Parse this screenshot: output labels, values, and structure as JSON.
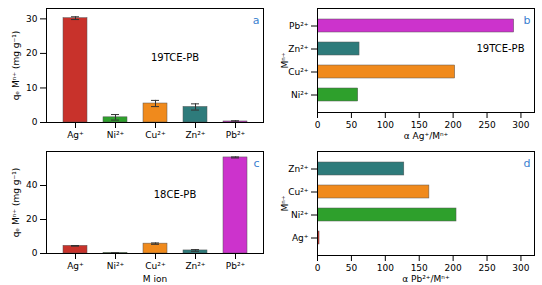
{
  "chart_data": [
    {
      "type": "bar",
      "categories": [
        "Ag⁺",
        "Ni²⁺",
        "Cu²⁺",
        "Zn²⁺",
        "Pb²⁺"
      ],
      "values": [
        30.2,
        1.5,
        5.5,
        4.5,
        0.3
      ],
      "errors": [
        0.4,
        0.8,
        0.9,
        0.9,
        0.2
      ],
      "colors": [
        "#c8322b",
        "#2ea02c",
        "#f08a1c",
        "#2e7b7b",
        "#cc33cc"
      ],
      "ylabel": "qₑ Mⁿ⁺ (mg g⁻¹)",
      "ylim": [
        0,
        33
      ],
      "yticks": [
        0,
        10,
        20,
        30
      ],
      "annotations": [
        "19TCE-PB",
        "a"
      ]
    },
    {
      "type": "bar",
      "orientation": "horizontal",
      "categories": [
        "Pb²⁺",
        "Zn²⁺",
        "Cu²⁺",
        "Ni²⁺"
      ],
      "values": [
        290,
        62,
        203,
        60
      ],
      "colors": [
        "#cc33cc",
        "#2e7b7b",
        "#f08a1c",
        "#2ea02c"
      ],
      "ylabel": "Mⁿ⁺",
      "xlabel": "α Ag⁺/Mⁿ⁺",
      "xlim": [
        0,
        320
      ],
      "xticks": [
        0,
        50,
        100,
        150,
        200,
        250,
        300
      ],
      "annotations": [
        "19TCE-PB",
        "b"
      ]
    },
    {
      "type": "bar",
      "categories": [
        "Ag⁺",
        "Ni²⁺",
        "Cu²⁺",
        "Zn²⁺",
        "Pb²⁺"
      ],
      "values": [
        4.5,
        0.3,
        5.8,
        1.8,
        56.5
      ],
      "errors": [
        0.2,
        0.1,
        0.4,
        0.5,
        0.3
      ],
      "colors": [
        "#c8322b",
        "#2ea02c",
        "#f08a1c",
        "#2e7b7b",
        "#cc33cc"
      ],
      "ylabel": "qₑ Mⁿ⁺ (mg g⁻¹)",
      "xlabel": "M ion",
      "ylim": [
        0,
        60
      ],
      "yticks": [
        0,
        20,
        40
      ],
      "annotations": [
        "18CE-PB",
        "c"
      ]
    },
    {
      "type": "bar",
      "orientation": "horizontal",
      "categories": [
        "Zn²⁺",
        "Cu²⁺",
        "Ni²⁺",
        "Ag⁺"
      ],
      "values": [
        128,
        165,
        205,
        3
      ],
      "colors": [
        "#2e7b7b",
        "#f08a1c",
        "#2ea02c",
        "#c8322b"
      ],
      "ylabel": "Mⁿ⁺",
      "xlabel": "α Pb²⁺/Mⁿ⁺",
      "xlim": [
        0,
        320
      ],
      "xticks": [
        0,
        50,
        100,
        150,
        200,
        250,
        300
      ],
      "annotations": [
        "d"
      ]
    }
  ]
}
